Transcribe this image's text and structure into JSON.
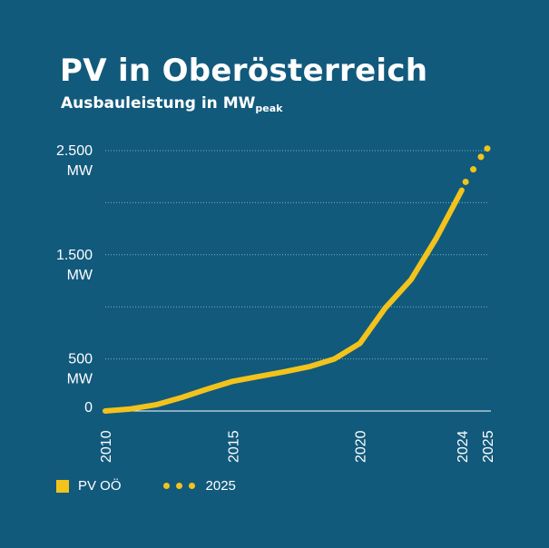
{
  "chart_data": {
    "type": "line",
    "title": "PV in Oberösterreich",
    "subtitle": "Ausbauleistung in MW",
    "subtitle_sub": "peak",
    "xlim": [
      2010,
      2025
    ],
    "ylim": [
      0,
      2500
    ],
    "gridlines": [
      500,
      1000,
      1500,
      2000,
      2500
    ],
    "y_ticks": [
      {
        "value": 2500,
        "line1": "2.500",
        "line2": "MW"
      },
      {
        "value": 1500,
        "line1": "1.500",
        "line2": "MW"
      },
      {
        "value": 500,
        "line1": "500",
        "line2": "MW"
      },
      {
        "value": 0,
        "line1": "0",
        "line2": ""
      }
    ],
    "x_ticks": [
      2010,
      2015,
      2020,
      2024,
      2025
    ],
    "series": [
      {
        "name": "PV OÖ",
        "style": "solid",
        "color": "#f3c31b",
        "x": [
          2010,
          2011,
          2012,
          2013,
          2014,
          2015,
          2016,
          2017,
          2018,
          2019,
          2020,
          2021,
          2022,
          2023,
          2024
        ],
        "y": [
          0,
          20,
          60,
          130,
          210,
          285,
          330,
          375,
          425,
          500,
          650,
          990,
          1260,
          1660,
          2120
        ]
      },
      {
        "name": "2025",
        "style": "dotted",
        "color": "#f3c31b",
        "x": [
          2024.15,
          2024.45,
          2024.75,
          2025
        ],
        "y": [
          2200,
          2320,
          2440,
          2520
        ]
      }
    ],
    "legend": [
      {
        "label": "PV OÖ",
        "marker": "square"
      },
      {
        "label": "2025",
        "marker": "dots"
      }
    ]
  }
}
